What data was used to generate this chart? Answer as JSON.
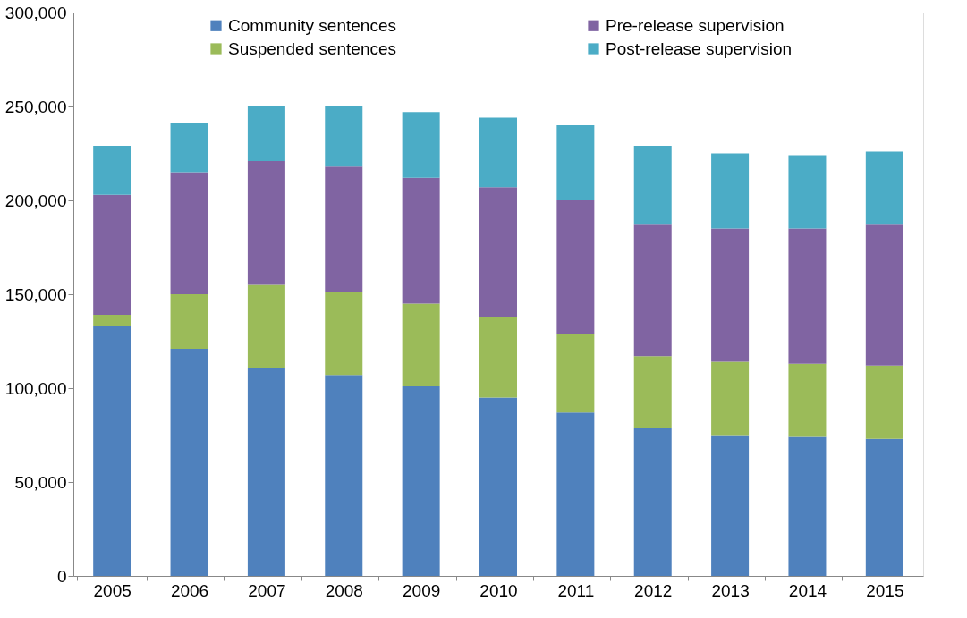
{
  "chart_data": {
    "type": "bar",
    "stacked": true,
    "categories": [
      "2005",
      "2006",
      "2007",
      "2008",
      "2009",
      "2010",
      "2011",
      "2012",
      "2013",
      "2014",
      "2015"
    ],
    "series": [
      {
        "name": "Community sentences",
        "color": "#4f81bd",
        "values": [
          133000,
          121000,
          111000,
          107000,
          101000,
          95000,
          87000,
          79000,
          75000,
          74000,
          73000
        ]
      },
      {
        "name": "Suspended sentences",
        "color": "#9bbb59",
        "values": [
          6000,
          29000,
          44000,
          44000,
          44000,
          43000,
          42000,
          38000,
          39000,
          39000,
          39000
        ]
      },
      {
        "name": "Pre-release supervision",
        "color": "#8064a2",
        "values": [
          64000,
          65000,
          66000,
          67000,
          67000,
          69000,
          71000,
          70000,
          71000,
          72000,
          75000
        ]
      },
      {
        "name": "Post-release supervision",
        "color": "#4bacc6",
        "values": [
          26000,
          26000,
          29000,
          32000,
          35000,
          37000,
          40000,
          42000,
          40000,
          39000,
          39000
        ]
      }
    ],
    "ylim": [
      0,
      300000
    ],
    "yticks": [
      {
        "value": 0,
        "label": "0"
      },
      {
        "value": 50000,
        "label": "50,000"
      },
      {
        "value": 100000,
        "label": "100,000"
      },
      {
        "value": 150000,
        "label": "150,000"
      },
      {
        "value": 200000,
        "label": "200,000"
      },
      {
        "value": 250000,
        "label": "250,000"
      },
      {
        "value": 300000,
        "label": "300,000"
      }
    ],
    "grid": false,
    "legend": "top"
  }
}
